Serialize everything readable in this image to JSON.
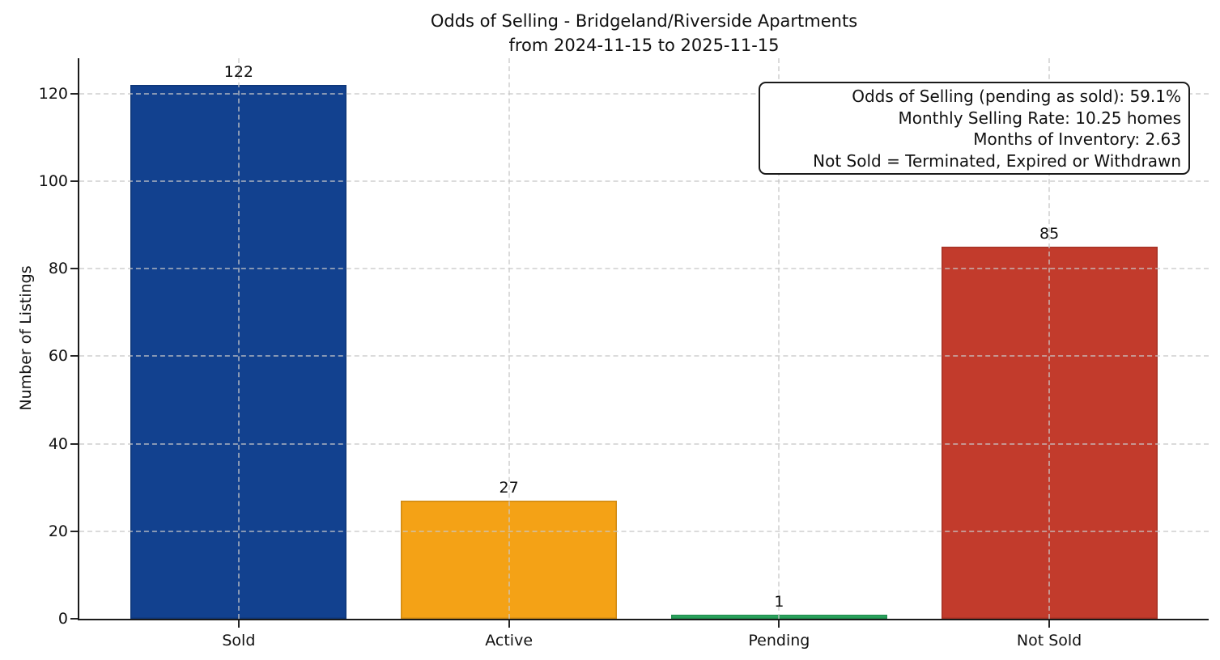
{
  "chart_data": {
    "type": "bar",
    "title": "Odds of Selling - Bridgeland/Riverside Apartments",
    "subtitle": "from 2024-11-15 to 2025-11-15",
    "ylabel": "Number of Listings",
    "xlabel": "",
    "categories": [
      "Sold",
      "Active",
      "Pending",
      "Not Sold"
    ],
    "values": [
      122,
      27,
      1,
      85
    ],
    "bar_colors": [
      "#12418f",
      "#f4a216",
      "#2aa75e",
      "#c23b2c"
    ],
    "value_labels": [
      "122",
      "27",
      "1",
      "85"
    ],
    "yticks": [
      0,
      20,
      40,
      60,
      80,
      100,
      120
    ],
    "ylim": [
      0,
      128.1
    ],
    "grid": true,
    "grid_style": "dashed",
    "legend_position": "none",
    "annotation": {
      "lines": [
        "Odds of Selling (pending as sold): 59.1%",
        "Monthly Selling Rate: 10.25 homes",
        "Months of Inventory: 2.63",
        "Not Sold = Terminated, Expired or Withdrawn"
      ]
    }
  }
}
